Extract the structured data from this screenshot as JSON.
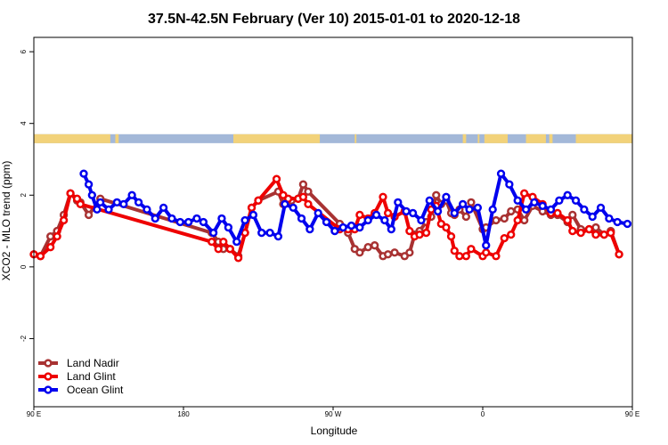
{
  "chart_data": {
    "type": "line",
    "title": "37.5N-42.5N February (Ver 10)   2015-01-01 to 2020-12-18",
    "xlabel": "Longitude",
    "ylabel": "XCO2 - MLO trend (ppm)",
    "xlim": [
      90,
      450
    ],
    "ylim": [
      -3.9,
      6.4
    ],
    "yticks": [
      -2,
      0,
      2,
      4,
      6
    ],
    "ytick_labels": [
      "-2",
      "0",
      "2",
      "4",
      "6"
    ],
    "xticks": [
      90,
      180,
      270,
      360,
      450
    ],
    "xtick_labels": [
      "90 E",
      "180",
      "90 W",
      "0",
      "90 E"
    ],
    "grid": false,
    "legend_position": "bottom-left",
    "landmask": {
      "y_range": [
        3.45,
        3.7
      ],
      "land_color": "#f2d27a",
      "ocean_color": "#a3b8d8",
      "land_segments": [
        [
          90,
          136
        ],
        [
          139,
          141
        ],
        [
          210,
          262
        ],
        [
          283,
          284
        ],
        [
          348,
          350
        ],
        [
          357,
          358
        ],
        [
          361,
          375
        ],
        [
          386,
          398
        ],
        [
          400,
          402
        ],
        [
          416,
          450
        ]
      ]
    },
    "series": [
      {
        "name": "Land Nadir",
        "color": "#a83232",
        "x": [
          90,
          94,
          100,
          104,
          108,
          112,
          116,
          118,
          123,
          130,
          197,
          201,
          204,
          208,
          213,
          217,
          221,
          225,
          237,
          240,
          242,
          245,
          249,
          252,
          255,
          274,
          279,
          283,
          286,
          291,
          295,
          300,
          303,
          307,
          313,
          316,
          319,
          322,
          326,
          329,
          332,
          335,
          338,
          341,
          343,
          346,
          350,
          353,
          360,
          362,
          368,
          373,
          377,
          381,
          385,
          390,
          396,
          401,
          405,
          411,
          414,
          419,
          424,
          428,
          433,
          437,
          442
        ],
        "y": [
          0.35,
          0.3,
          0.85,
          1.0,
          1.45,
          2.05,
          1.85,
          1.8,
          1.45,
          1.9,
          0.95,
          0.7,
          0.5,
          0.5,
          0.3,
          0.95,
          1.65,
          1.85,
          2.1,
          1.75,
          1.8,
          1.85,
          1.9,
          2.3,
          2.1,
          1.2,
          0.95,
          0.5,
          0.4,
          0.55,
          0.6,
          0.3,
          0.35,
          0.4,
          0.3,
          0.4,
          0.9,
          1.0,
          1.25,
          1.4,
          2.0,
          1.75,
          1.85,
          1.5,
          1.45,
          1.6,
          1.4,
          1.8,
          1.05,
          1.1,
          1.3,
          1.35,
          1.55,
          1.6,
          1.3,
          1.7,
          1.55,
          1.45,
          1.45,
          1.25,
          1.45,
          1.05,
          1.05,
          1.1,
          0.9,
          1.0,
          0.35
        ]
      },
      {
        "name": "Land Glint",
        "color": "#ee0000",
        "x": [
          90,
          94,
          100,
          104,
          108,
          112,
          116,
          118,
          197,
          201,
          204,
          208,
          213,
          217,
          221,
          225,
          236,
          240,
          243,
          249,
          252,
          255,
          274,
          279,
          283,
          286,
          291,
          295,
          300,
          303,
          307,
          313,
          316,
          319,
          322,
          326,
          329,
          332,
          335,
          338,
          341,
          343,
          346,
          350,
          353,
          360,
          362,
          368,
          373,
          377,
          381,
          385,
          390,
          396,
          401,
          405,
          411,
          414,
          419,
          424,
          428,
          433,
          437,
          442
        ],
        "y": [
          0.35,
          0.3,
          0.55,
          0.85,
          1.3,
          2.05,
          1.9,
          1.75,
          0.7,
          0.5,
          0.7,
          0.5,
          0.25,
          0.95,
          1.65,
          1.85,
          2.45,
          2.0,
          1.9,
          1.9,
          1.95,
          1.75,
          1.05,
          1.05,
          1.05,
          1.45,
          1.35,
          1.5,
          1.95,
          1.5,
          1.4,
          1.55,
          1.0,
          0.85,
          0.9,
          0.95,
          1.6,
          1.7,
          1.2,
          1.1,
          0.85,
          0.45,
          0.3,
          0.3,
          0.5,
          0.3,
          0.4,
          0.3,
          0.8,
          0.9,
          1.3,
          2.05,
          1.95,
          1.75,
          1.5,
          1.5,
          1.3,
          1.0,
          0.95,
          1.05,
          0.9,
          0.9,
          0.95,
          0.35
        ]
      },
      {
        "name": "Ocean Glint",
        "color": "#0000ee",
        "x": [
          120,
          123,
          125,
          128,
          130,
          135,
          140,
          144,
          149,
          153,
          158,
          163,
          168,
          173,
          178,
          183,
          188,
          192,
          198,
          203,
          207,
          212,
          217,
          222,
          227,
          232,
          237,
          241,
          246,
          251,
          256,
          261,
          266,
          271,
          276,
          281,
          286,
          291,
          296,
          301,
          305,
          309,
          314,
          318,
          323,
          328,
          333,
          338,
          343,
          348,
          352,
          357,
          362,
          366,
          371,
          376,
          381,
          386,
          391,
          396,
          401,
          406,
          411,
          416,
          421,
          426,
          431,
          436,
          441,
          447
        ],
        "y": [
          2.6,
          2.3,
          2.0,
          1.6,
          1.8,
          1.6,
          1.8,
          1.75,
          2.0,
          1.8,
          1.6,
          1.35,
          1.65,
          1.35,
          1.25,
          1.25,
          1.35,
          1.25,
          0.95,
          1.35,
          1.1,
          0.7,
          1.3,
          1.45,
          0.95,
          0.95,
          0.85,
          1.75,
          1.65,
          1.35,
          1.05,
          1.5,
          1.25,
          1.0,
          1.1,
          1.15,
          1.1,
          1.3,
          1.45,
          1.3,
          1.05,
          1.8,
          1.55,
          1.5,
          1.3,
          1.85,
          1.55,
          1.95,
          1.5,
          1.75,
          1.6,
          1.65,
          0.6,
          1.6,
          2.6,
          2.3,
          1.85,
          1.6,
          1.8,
          1.7,
          1.6,
          1.85,
          2.0,
          1.85,
          1.6,
          1.4,
          1.65,
          1.35,
          1.25,
          1.2
        ]
      }
    ]
  }
}
